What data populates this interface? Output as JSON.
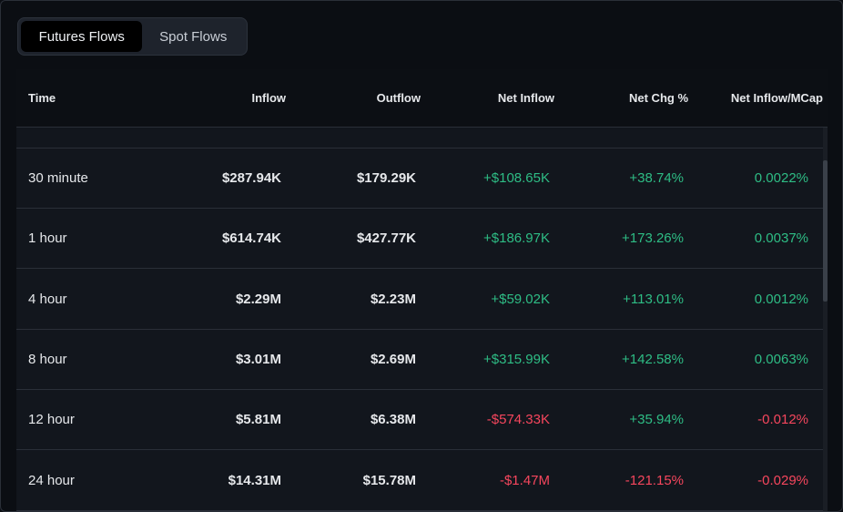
{
  "tabs": [
    {
      "label": "Futures Flows",
      "active": true
    },
    {
      "label": "Spot Flows",
      "active": false
    }
  ],
  "table": {
    "headers": {
      "time": "Time",
      "inflow": "Inflow",
      "outflow": "Outflow",
      "net_inflow": "Net Inflow",
      "net_chg": "Net Chg %",
      "net_mcap": "Net Inflow/MCap"
    },
    "rows": [
      {
        "time": "30 minute",
        "inflow": "$287.94K",
        "outflow": "$179.29K",
        "net_inflow": "+$108.65K",
        "net_chg": "+38.74%",
        "net_mcap": "0.0022%"
      },
      {
        "time": "1 hour",
        "inflow": "$614.74K",
        "outflow": "$427.77K",
        "net_inflow": "+$186.97K",
        "net_chg": "+173.26%",
        "net_mcap": "0.0037%"
      },
      {
        "time": "4 hour",
        "inflow": "$2.29M",
        "outflow": "$2.23M",
        "net_inflow": "+$59.02K",
        "net_chg": "+113.01%",
        "net_mcap": "0.0012%"
      },
      {
        "time": "8 hour",
        "inflow": "$3.01M",
        "outflow": "$2.69M",
        "net_inflow": "+$315.99K",
        "net_chg": "+142.58%",
        "net_mcap": "0.0063%"
      },
      {
        "time": "12 hour",
        "inflow": "$5.81M",
        "outflow": "$6.38M",
        "net_inflow": "-$574.33K",
        "net_chg": "+35.94%",
        "net_mcap": "-0.012%"
      },
      {
        "time": "24 hour",
        "inflow": "$14.31M",
        "outflow": "$15.78M",
        "net_inflow": "-$1.47M",
        "net_chg": "-121.15%",
        "net_mcap": "-0.029%"
      }
    ]
  },
  "colors": {
    "positive": "#2ebd85",
    "negative": "#f6465d",
    "background": "#0b0e13",
    "table_bg": "#12161d"
  }
}
